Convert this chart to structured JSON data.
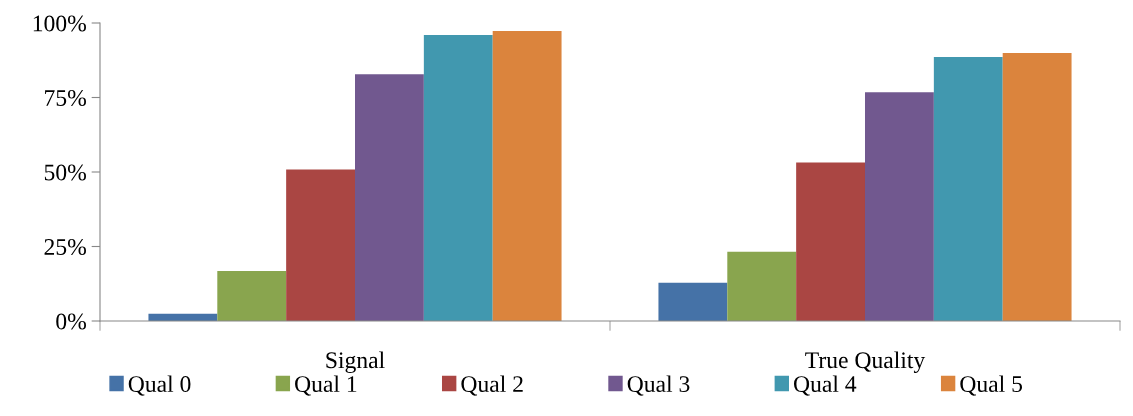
{
  "chart_data": {
    "type": "bar",
    "categories": [
      "Signal",
      "True Quality"
    ],
    "series": [
      {
        "name": "Qual 0",
        "color": "#4572a7",
        "values": [
          2.4,
          12.8
        ]
      },
      {
        "name": "Qual 1",
        "color": "#89a54e",
        "values": [
          16.8,
          23.2
        ]
      },
      {
        "name": "Qual 2",
        "color": "#aa4643",
        "values": [
          50.8,
          53.2
        ]
      },
      {
        "name": "Qual 3",
        "color": "#71588f",
        "values": [
          82.8,
          76.8
        ]
      },
      {
        "name": "Qual 4",
        "color": "#4198af",
        "values": [
          96,
          88.6
        ]
      },
      {
        "name": "Qual 5",
        "color": "#db843d",
        "values": [
          97.3,
          89.9
        ]
      }
    ],
    "ylim": [
      0,
      100
    ],
    "yticks": [
      {
        "value": 0,
        "label": "0%"
      },
      {
        "value": 25,
        "label": "25%"
      },
      {
        "value": 50,
        "label": "50%"
      },
      {
        "value": 75,
        "label": "75%"
      },
      {
        "value": 100,
        "label": "100%"
      }
    ],
    "grid": false,
    "legend": "bottom"
  }
}
